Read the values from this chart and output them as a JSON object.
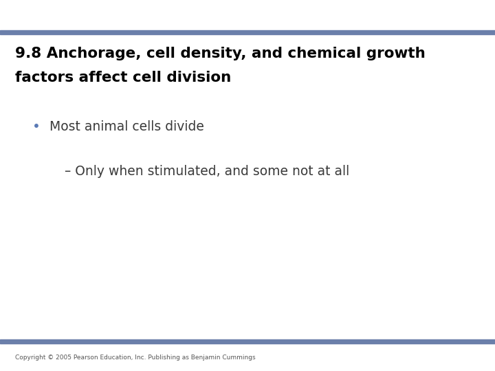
{
  "title_line1": "9.8 Anchorage, cell density, and chemical growth",
  "title_line2": "factors affect cell division",
  "bullet1": "Most animal cells divide",
  "sub_bullet1": "Only when stimulated, and some not at all",
  "copyright": "Copyright © 2005 Pearson Education, Inc. Publishing as Benjamin Cummings",
  "top_bar_color": "#6b7faa",
  "bottom_bar_color": "#6b7faa",
  "background_color": "#ffffff",
  "title_color": "#000000",
  "bullet_color": "#3a3a3a",
  "sub_bullet_color": "#3a3a3a",
  "bullet_dot_color": "#5a7ab5",
  "title_fontsize": 15.5,
  "bullet_fontsize": 13.5,
  "sub_bullet_fontsize": 13.5,
  "copyright_fontsize": 6.5
}
